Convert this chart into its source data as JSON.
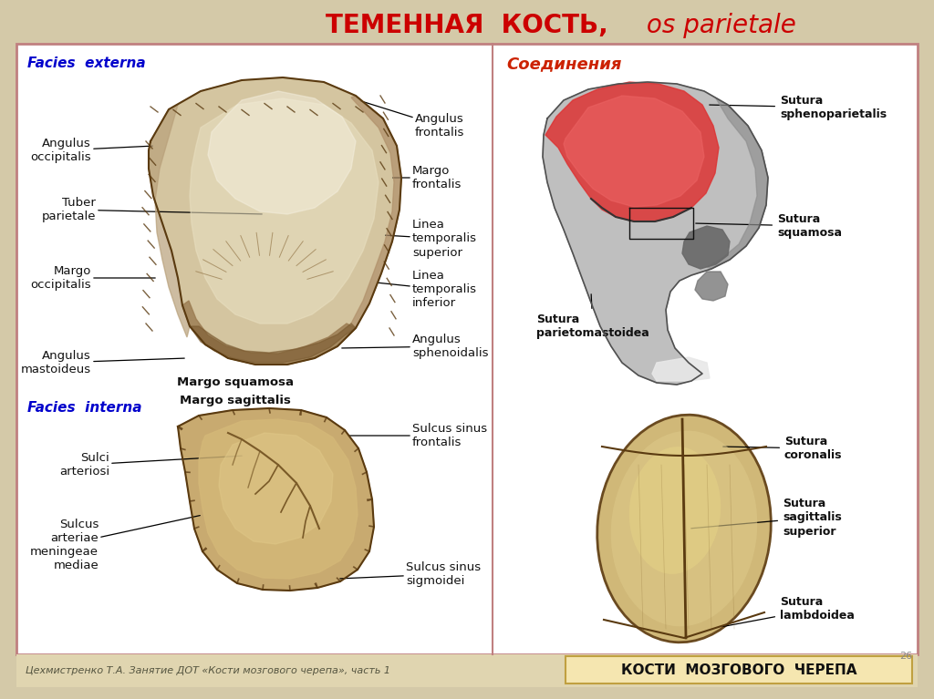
{
  "title_bold": "ТЕМЕННАЯ  КОСТЬ,",
  "title_italic": " os parietale",
  "title_color": "#cc0000",
  "bg_color": "#d4c9a8",
  "panel_bg": "#ffffff",
  "border_color": "#c08080",
  "left_panel_label1": "Facies  externa",
  "left_panel_label2": "Facies  interna",
  "right_panel_label1": "Соединения",
  "footer_left": "Цехмистренко Т.А. Занятие ДОТ «Кости мозгового черепа», часть 1",
  "footer_right": "КОСТИ  МОЗГОВОГО  ЧЕРЕПА",
  "footer_right_bg": "#f5e6b0",
  "page_num": "26",
  "label_color_blue": "#0000cc",
  "label_color_black": "#111111",
  "label_color_red": "#cc2200"
}
